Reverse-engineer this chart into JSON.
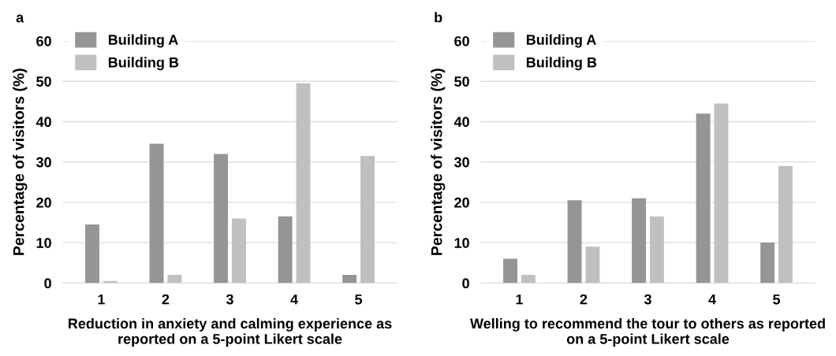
{
  "chart_data": [
    {
      "type": "bar",
      "title": "a",
      "xlabel": "Reduction in anxiety and calming experience as\nreported on a 5-point Likert scale",
      "ylabel": "Percentage of visitors (%)",
      "categories": [
        "1",
        "2",
        "3",
        "4",
        "5"
      ],
      "series": [
        {
          "name": "Building A",
          "color": "#959595",
          "values": [
            14.5,
            34.5,
            32,
            16.5,
            2
          ]
        },
        {
          "name": "Building B",
          "color": "#c0c0c0",
          "values": [
            0.5,
            2,
            16,
            49.5,
            31.5
          ]
        }
      ],
      "ylim": [
        0,
        60
      ],
      "yticks": [
        0,
        10,
        20,
        30,
        40,
        50,
        60
      ],
      "grid": "y",
      "legend": "top left"
    },
    {
      "type": "bar",
      "title": "b",
      "xlabel": "Welling to recommend the tour to others as reported\non a 5-point Likert scale",
      "ylabel": "Percentage of visitors (%)",
      "categories": [
        "1",
        "2",
        "3",
        "4",
        "5"
      ],
      "series": [
        {
          "name": "Building A",
          "color": "#959595",
          "values": [
            6,
            20.5,
            21,
            42,
            10
          ]
        },
        {
          "name": "Building B",
          "color": "#c0c0c0",
          "values": [
            2,
            9,
            16.5,
            44.5,
            29
          ]
        }
      ],
      "ylim": [
        0,
        60
      ],
      "yticks": [
        0,
        10,
        20,
        30,
        40,
        50,
        60
      ],
      "grid": "y",
      "legend": "top left"
    }
  ]
}
